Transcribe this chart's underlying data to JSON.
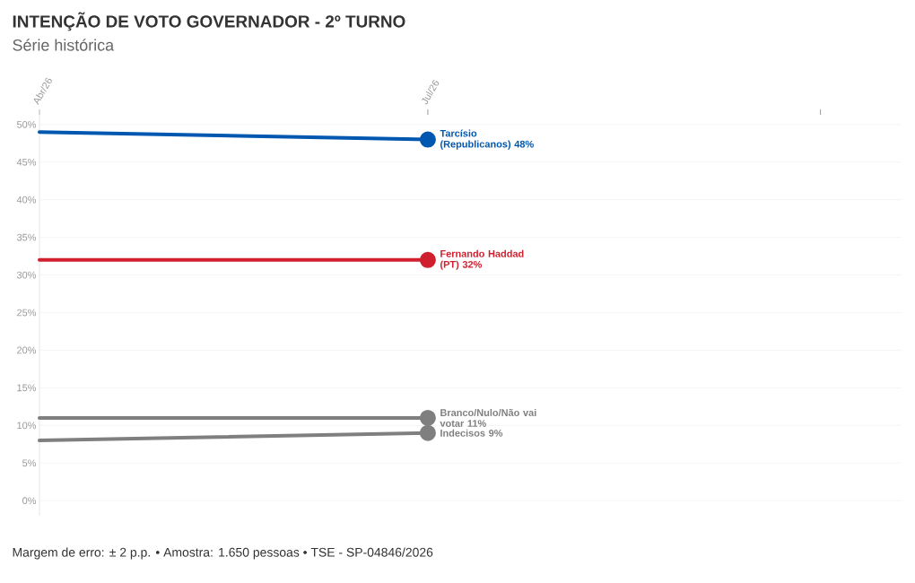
{
  "chart_data": {
    "type": "line",
    "title": "INTENÇÃO DE VOTO GOVERNADOR - 2º TURNO",
    "subtitle": "Série histórica",
    "x": [
      "2026-04",
      "2026-07"
    ],
    "series": [
      {
        "name": "Tarcísio (Republicanos) 48%",
        "color": "#0057b0",
        "values": [
          49,
          48
        ]
      },
      {
        "name": "Fernando Haddad (PT) 32%",
        "color": "#d0202e",
        "values": [
          32,
          32
        ]
      },
      {
        "name": "Branco/Nulo/Não vai votar 11%",
        "color": "#7f7f7f",
        "values": [
          11,
          11
        ]
      },
      {
        "name": "Indecisos 9%",
        "color": "#7f7f7f",
        "values": [
          8,
          9
        ]
      }
    ],
    "xlim": [
      "2026-04",
      "2026-10-20"
    ],
    "xticks": [
      {
        "value": "2026-04",
        "label": "Abr/26"
      },
      {
        "value": "2026-07",
        "label": "Jul/26"
      },
      {
        "value": "2026-10",
        "label": null
      }
    ],
    "ylim": [
      -2,
      52
    ],
    "yticks": [
      {
        "value": 0,
        "label": "0%"
      },
      {
        "value": 5,
        "label": "5%"
      },
      {
        "value": 10,
        "label": "10%"
      },
      {
        "value": 15,
        "label": "15%"
      },
      {
        "value": 20,
        "label": "20%"
      },
      {
        "value": 25,
        "label": "25%"
      },
      {
        "value": 30,
        "label": "30%"
      },
      {
        "value": 35,
        "label": "35%"
      },
      {
        "value": 40,
        "label": "40%"
      },
      {
        "value": 45,
        "label": "45%"
      },
      {
        "value": 50,
        "label": "50%"
      }
    ],
    "grid": "y",
    "legend": false,
    "marker": "circle",
    "line_style": "solid",
    "annotations": [
      "Margem de erro: ± 2 p.p. • Amostra: 1.650 pessoas • TSE - SP-04846/2026"
    ]
  }
}
